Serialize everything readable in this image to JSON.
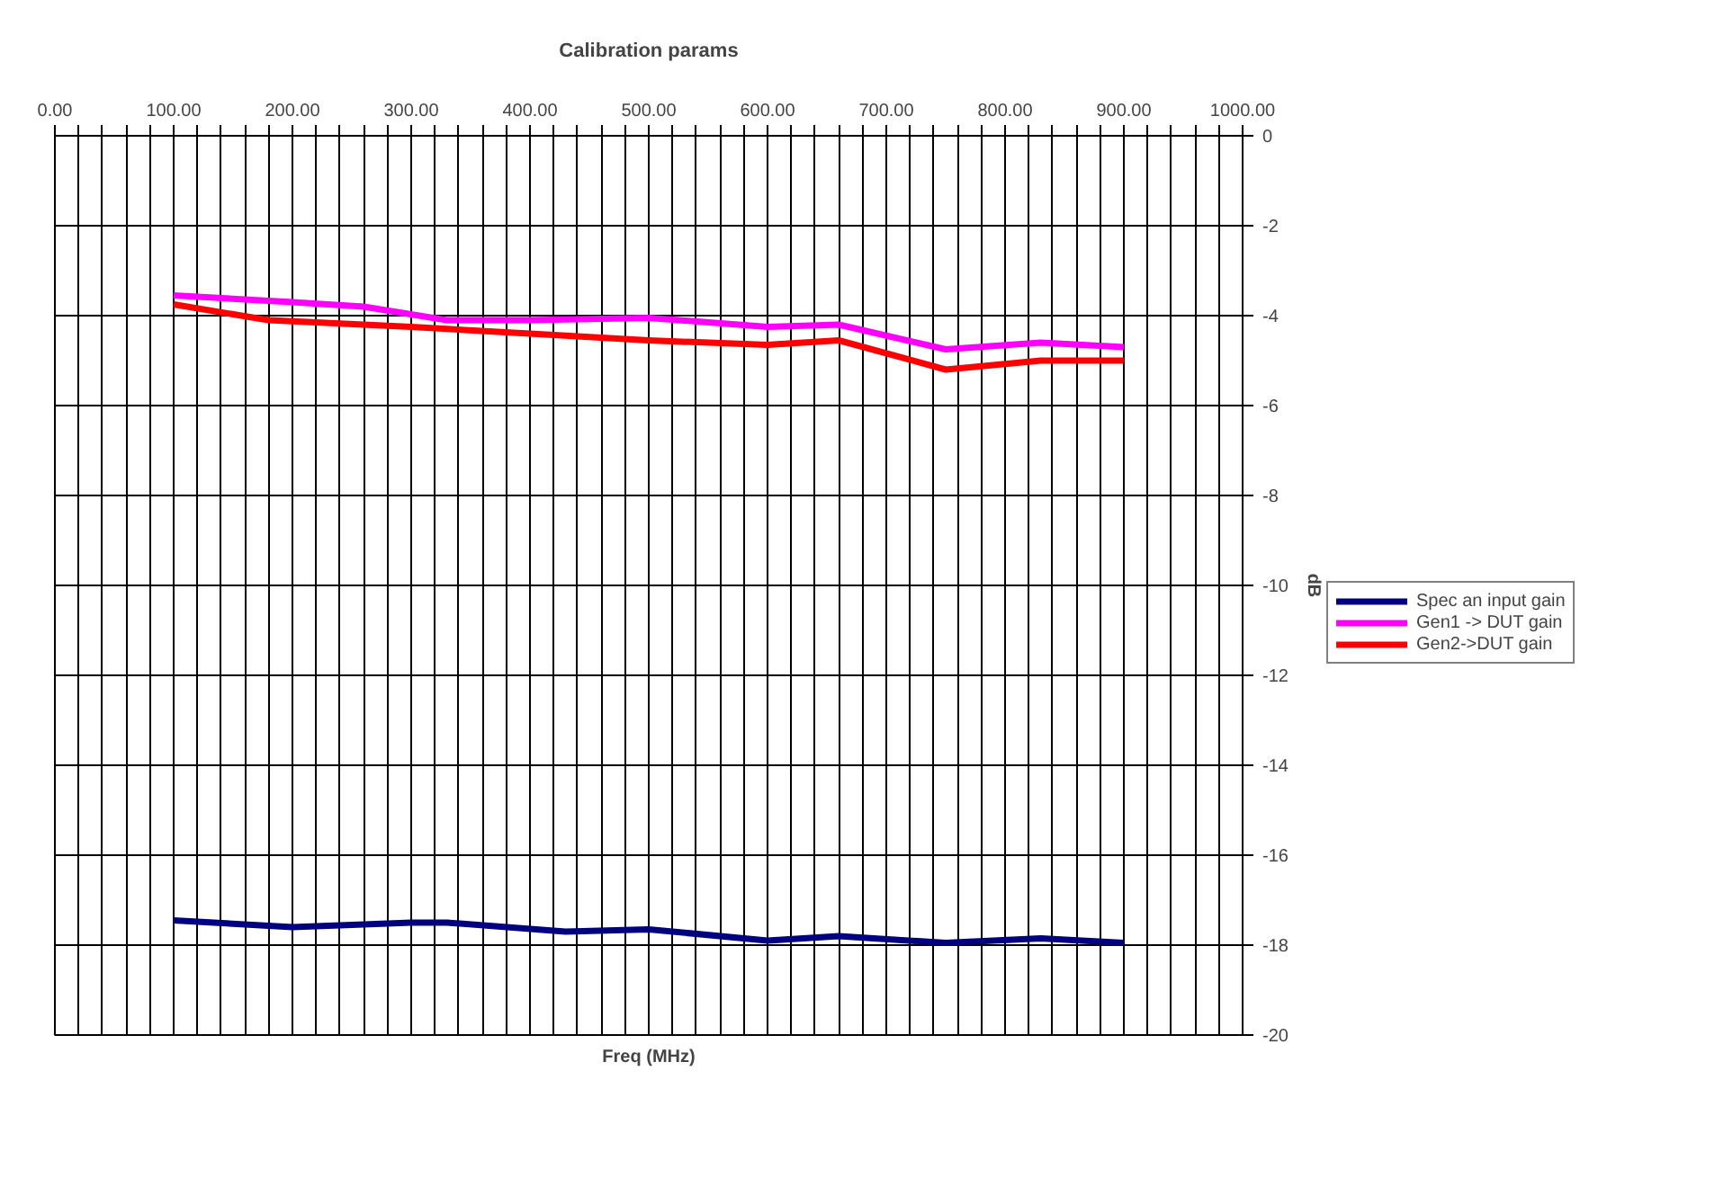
{
  "chart_data": {
    "type": "line",
    "title": "Calibration params",
    "xlabel": "Freq (MHz)",
    "ylabel": "dB",
    "xlim": [
      0,
      1000
    ],
    "xticks": [
      {
        "value": 0,
        "label": "0.00"
      },
      {
        "value": 20,
        "label": null
      },
      {
        "value": 40,
        "label": null
      },
      {
        "value": 60,
        "label": null
      },
      {
        "value": 80,
        "label": null
      },
      {
        "value": 100,
        "label": "100.00"
      },
      {
        "value": 120,
        "label": null
      },
      {
        "value": 140,
        "label": null
      },
      {
        "value": 160,
        "label": null
      },
      {
        "value": 180,
        "label": null
      },
      {
        "value": 200,
        "label": "200.00"
      },
      {
        "value": 220,
        "label": null
      },
      {
        "value": 240,
        "label": null
      },
      {
        "value": 260,
        "label": null
      },
      {
        "value": 280,
        "label": null
      },
      {
        "value": 300,
        "label": "300.00"
      },
      {
        "value": 320,
        "label": null
      },
      {
        "value": 340,
        "label": null
      },
      {
        "value": 360,
        "label": null
      },
      {
        "value": 380,
        "label": null
      },
      {
        "value": 400,
        "label": "400.00"
      },
      {
        "value": 420,
        "label": null
      },
      {
        "value": 440,
        "label": null
      },
      {
        "value": 460,
        "label": null
      },
      {
        "value": 480,
        "label": null
      },
      {
        "value": 500,
        "label": "500.00"
      },
      {
        "value": 520,
        "label": null
      },
      {
        "value": 540,
        "label": null
      },
      {
        "value": 560,
        "label": null
      },
      {
        "value": 580,
        "label": null
      },
      {
        "value": 600,
        "label": "600.00"
      },
      {
        "value": 620,
        "label": null
      },
      {
        "value": 640,
        "label": null
      },
      {
        "value": 660,
        "label": null
      },
      {
        "value": 680,
        "label": null
      },
      {
        "value": 700,
        "label": "700.00"
      },
      {
        "value": 720,
        "label": null
      },
      {
        "value": 740,
        "label": null
      },
      {
        "value": 760,
        "label": null
      },
      {
        "value": 780,
        "label": null
      },
      {
        "value": 800,
        "label": "800.00"
      },
      {
        "value": 820,
        "label": null
      },
      {
        "value": 840,
        "label": null
      },
      {
        "value": 860,
        "label": null
      },
      {
        "value": 880,
        "label": null
      },
      {
        "value": 900,
        "label": "900.00"
      },
      {
        "value": 920,
        "label": null
      },
      {
        "value": 940,
        "label": null
      },
      {
        "value": 960,
        "label": null
      },
      {
        "value": 980,
        "label": null
      },
      {
        "value": 1000,
        "label": "1000.00"
      }
    ],
    "ylim": [
      -20,
      0
    ],
    "yticks": [
      0,
      -2,
      -4,
      -6,
      -8,
      -10,
      -12,
      -14,
      -16,
      -18,
      -20
    ],
    "grid": true,
    "legend": "right",
    "marker": "none",
    "line_style": "solid",
    "series": [
      {
        "name": "Spec an input gain",
        "color": "#000080",
        "x": [
          100,
          200,
          300,
          330,
          430,
          500,
          600,
          660,
          750,
          830,
          900
        ],
        "values": [
          -17.45,
          -17.6,
          -17.5,
          -17.5,
          -17.7,
          -17.65,
          -17.9,
          -17.8,
          -17.95,
          -17.85,
          -17.95
        ]
      },
      {
        "name": "Gen1 -> DUT gain",
        "color": "#ff00ff",
        "x": [
          100,
          200,
          260,
          330,
          400,
          500,
          600,
          660,
          750,
          830,
          900
        ],
        "values": [
          -3.55,
          -3.7,
          -3.8,
          -4.1,
          -4.1,
          -4.05,
          -4.25,
          -4.2,
          -4.75,
          -4.6,
          -4.7
        ]
      },
      {
        "name": "Gen2->DUT gain",
        "color": "#ff0000",
        "x": [
          100,
          180,
          300,
          400,
          500,
          600,
          660,
          750,
          830,
          900
        ],
        "values": [
          -3.75,
          -4.1,
          -4.25,
          -4.4,
          -4.55,
          -4.65,
          -4.55,
          -5.2,
          -5.0,
          -5.0
        ]
      }
    ]
  }
}
